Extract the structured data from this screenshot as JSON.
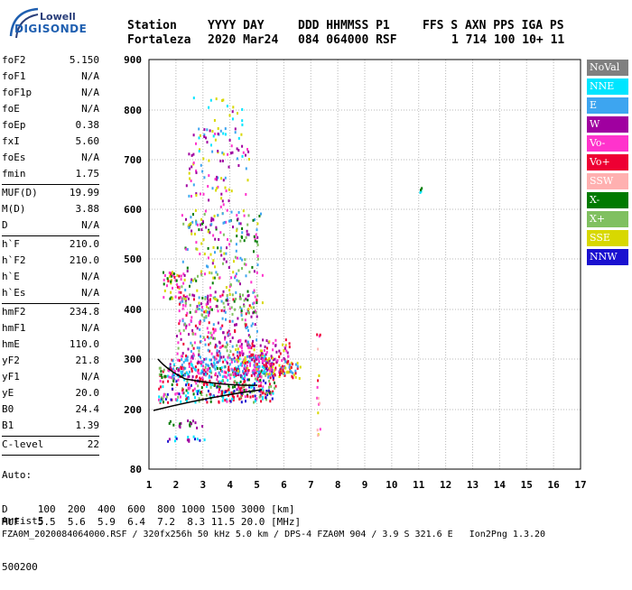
{
  "logo": {
    "line1": "Lowell",
    "line2": "DIGISONDE"
  },
  "header": {
    "row1": [
      "Station",
      "YYYY DAY",
      "DDD HHMMSS P1",
      "FFS S AXN PPS IGA PS"
    ],
    "row2": [
      "Fortaleza",
      "2020 Mar24",
      "084 064000 RSF",
      "1 714 100 10+ 11"
    ]
  },
  "params": {
    "group1": [
      {
        "label": "foF2",
        "value": "5.150"
      },
      {
        "label": "foF1",
        "value": "N/A"
      },
      {
        "label": "foF1p",
        "value": "N/A"
      },
      {
        "label": "foE",
        "value": "N/A"
      },
      {
        "label": "foEp",
        "value": "0.38"
      },
      {
        "label": "fxI",
        "value": "5.60"
      },
      {
        "label": "foEs",
        "value": "N/A"
      },
      {
        "label": "fmin",
        "value": "1.75"
      }
    ],
    "group2": [
      {
        "label": "MUF(D)",
        "value": "19.99"
      },
      {
        "label": "M(D)",
        "value": "3.88"
      },
      {
        "label": "D",
        "value": "N/A"
      }
    ],
    "group3": [
      {
        "label": "h`F",
        "value": "210.0"
      },
      {
        "label": "h`F2",
        "value": "210.0"
      },
      {
        "label": "h`E",
        "value": "N/A"
      },
      {
        "label": "h`Es",
        "value": "N/A"
      }
    ],
    "group4": [
      {
        "label": "hmF2",
        "value": "234.8"
      },
      {
        "label": "hmF1",
        "value": "N/A"
      },
      {
        "label": "hmE",
        "value": "110.0"
      },
      {
        "label": "yF2",
        "value": "21.8"
      },
      {
        "label": "yF1",
        "value": "N/A"
      },
      {
        "label": "yE",
        "value": "20.0"
      },
      {
        "label": "B0",
        "value": "24.4"
      },
      {
        "label": "B1",
        "value": "1.39"
      }
    ],
    "clevel": {
      "label": "C-level",
      "value": "22"
    }
  },
  "autoscale": {
    "line1": "Auto:",
    "line2": "Artist5",
    "line3": "500200"
  },
  "axes": {
    "y_ticks": [
      "900",
      "800",
      "700",
      "600",
      "500",
      "400",
      "300",
      "200",
      "80"
    ],
    "x_ticks": [
      "1",
      "2",
      "3",
      "4",
      "5",
      "6",
      "7",
      "8",
      "9",
      "10",
      "11",
      "12",
      "13",
      "14",
      "15",
      "16",
      "17"
    ]
  },
  "legend": [
    {
      "label": "NoVal",
      "color": "#808080"
    },
    {
      "label": "NNE",
      "color": "#00e5ff"
    },
    {
      "label": "E",
      "color": "#3da5f0"
    },
    {
      "label": "W",
      "color": "#a000a0"
    },
    {
      "label": "Vo-",
      "color": "#ff33cc"
    },
    {
      "label": "Vo+",
      "color": "#ee0033"
    },
    {
      "label": "SSW",
      "color": "#ffb0b0"
    },
    {
      "label": "X-",
      "color": "#007a00"
    },
    {
      "label": "X+",
      "color": "#80c060"
    },
    {
      "label": "SSE",
      "color": "#d8d800"
    },
    {
      "label": "NNW",
      "color": "#1a10d0"
    }
  ],
  "footer": {
    "d_row": "D     100  200  400  600  800 1000 1500 3000 [km]",
    "muf_row": "MUF   5.5  5.6  5.9  6.4  7.2  8.3 11.5 20.0 [MHz]",
    "file_row": "FZA0M_2020084064000.RSF / 320fx256h 50 kHz 5.0 km / DPS-4 FZA0M 904 / 3.9 S 321.6 E   Ion2Png 1.3.20"
  }
}
